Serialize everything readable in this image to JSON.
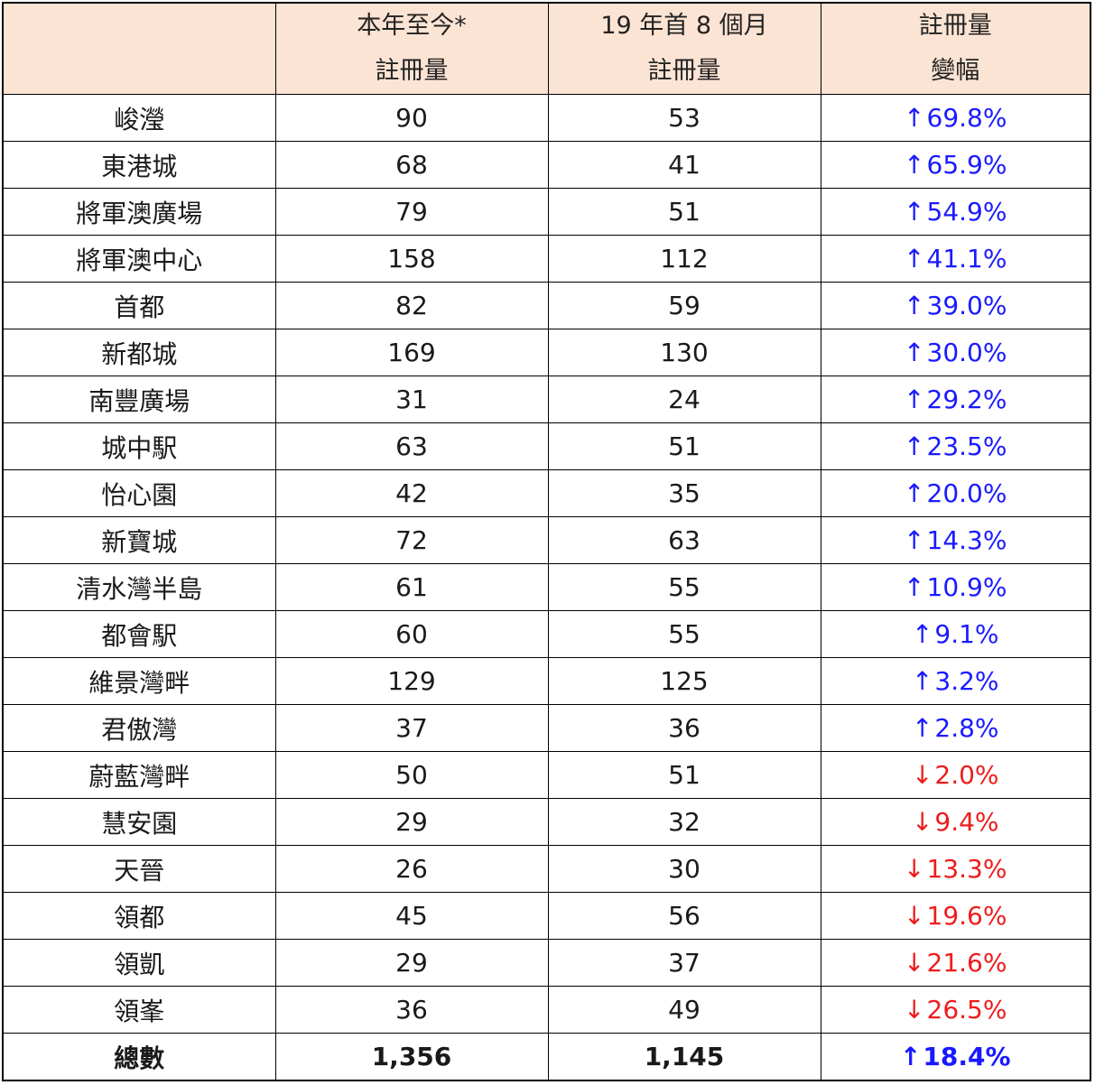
{
  "table": {
    "headers": [
      {
        "line1": "",
        "line2": ""
      },
      {
        "line1": "本年至今*",
        "line2": "註冊量"
      },
      {
        "line1": "19 年首 8 個月",
        "line2": "註冊量"
      },
      {
        "line1": "註冊量",
        "line2": "變幅"
      }
    ],
    "rows": [
      {
        "name": "峻瀅",
        "ytd": "90",
        "prev": "53",
        "arrow": "↑",
        "change": "69.8%",
        "dir": "up"
      },
      {
        "name": "東港城",
        "ytd": "68",
        "prev": "41",
        "arrow": "↑",
        "change": "65.9%",
        "dir": "up"
      },
      {
        "name": "將軍澳廣場",
        "ytd": "79",
        "prev": "51",
        "arrow": "↑",
        "change": "54.9%",
        "dir": "up"
      },
      {
        "name": "將軍澳中心",
        "ytd": "158",
        "prev": "112",
        "arrow": "↑",
        "change": "41.1%",
        "dir": "up"
      },
      {
        "name": "首都",
        "ytd": "82",
        "prev": "59",
        "arrow": "↑",
        "change": "39.0%",
        "dir": "up"
      },
      {
        "name": "新都城",
        "ytd": "169",
        "prev": "130",
        "arrow": "↑",
        "change": "30.0%",
        "dir": "up"
      },
      {
        "name": "南豐廣場",
        "ytd": "31",
        "prev": "24",
        "arrow": "↑",
        "change": "29.2%",
        "dir": "up"
      },
      {
        "name": "城中駅",
        "ytd": "63",
        "prev": "51",
        "arrow": "↑",
        "change": "23.5%",
        "dir": "up"
      },
      {
        "name": "怡心園",
        "ytd": "42",
        "prev": "35",
        "arrow": "↑",
        "change": "20.0%",
        "dir": "up"
      },
      {
        "name": "新寶城",
        "ytd": "72",
        "prev": "63",
        "arrow": "↑",
        "change": "14.3%",
        "dir": "up"
      },
      {
        "name": "清水灣半島",
        "ytd": "61",
        "prev": "55",
        "arrow": "↑",
        "change": "10.9%",
        "dir": "up"
      },
      {
        "name": "都會駅",
        "ytd": "60",
        "prev": "55",
        "arrow": "↑",
        "change": "9.1%",
        "dir": "up"
      },
      {
        "name": "維景灣畔",
        "ytd": "129",
        "prev": "125",
        "arrow": "↑",
        "change": "3.2%",
        "dir": "up"
      },
      {
        "name": "君傲灣",
        "ytd": "37",
        "prev": "36",
        "arrow": "↑",
        "change": "2.8%",
        "dir": "up"
      },
      {
        "name": "蔚藍灣畔",
        "ytd": "50",
        "prev": "51",
        "arrow": "↓",
        "change": "2.0%",
        "dir": "down"
      },
      {
        "name": "慧安園",
        "ytd": "29",
        "prev": "32",
        "arrow": "↓",
        "change": "9.4%",
        "dir": "down"
      },
      {
        "name": "天晉",
        "ytd": "26",
        "prev": "30",
        "arrow": "↓",
        "change": "13.3%",
        "dir": "down"
      },
      {
        "name": "領都",
        "ytd": "45",
        "prev": "56",
        "arrow": "↓",
        "change": "19.6%",
        "dir": "down"
      },
      {
        "name": "領凱",
        "ytd": "29",
        "prev": "37",
        "arrow": "↓",
        "change": "21.6%",
        "dir": "down"
      },
      {
        "name": "領峯",
        "ytd": "36",
        "prev": "49",
        "arrow": "↓",
        "change": "26.5%",
        "dir": "down"
      }
    ],
    "total": {
      "name": "總數",
      "ytd": "1,356",
      "prev": "1,145",
      "arrow": "↑",
      "change": "18.4%",
      "dir": "up"
    }
  },
  "colors": {
    "header_bg": "#fce4d4",
    "up": "#1a1aff",
    "down": "#ee1c1c",
    "border": "#000000"
  }
}
